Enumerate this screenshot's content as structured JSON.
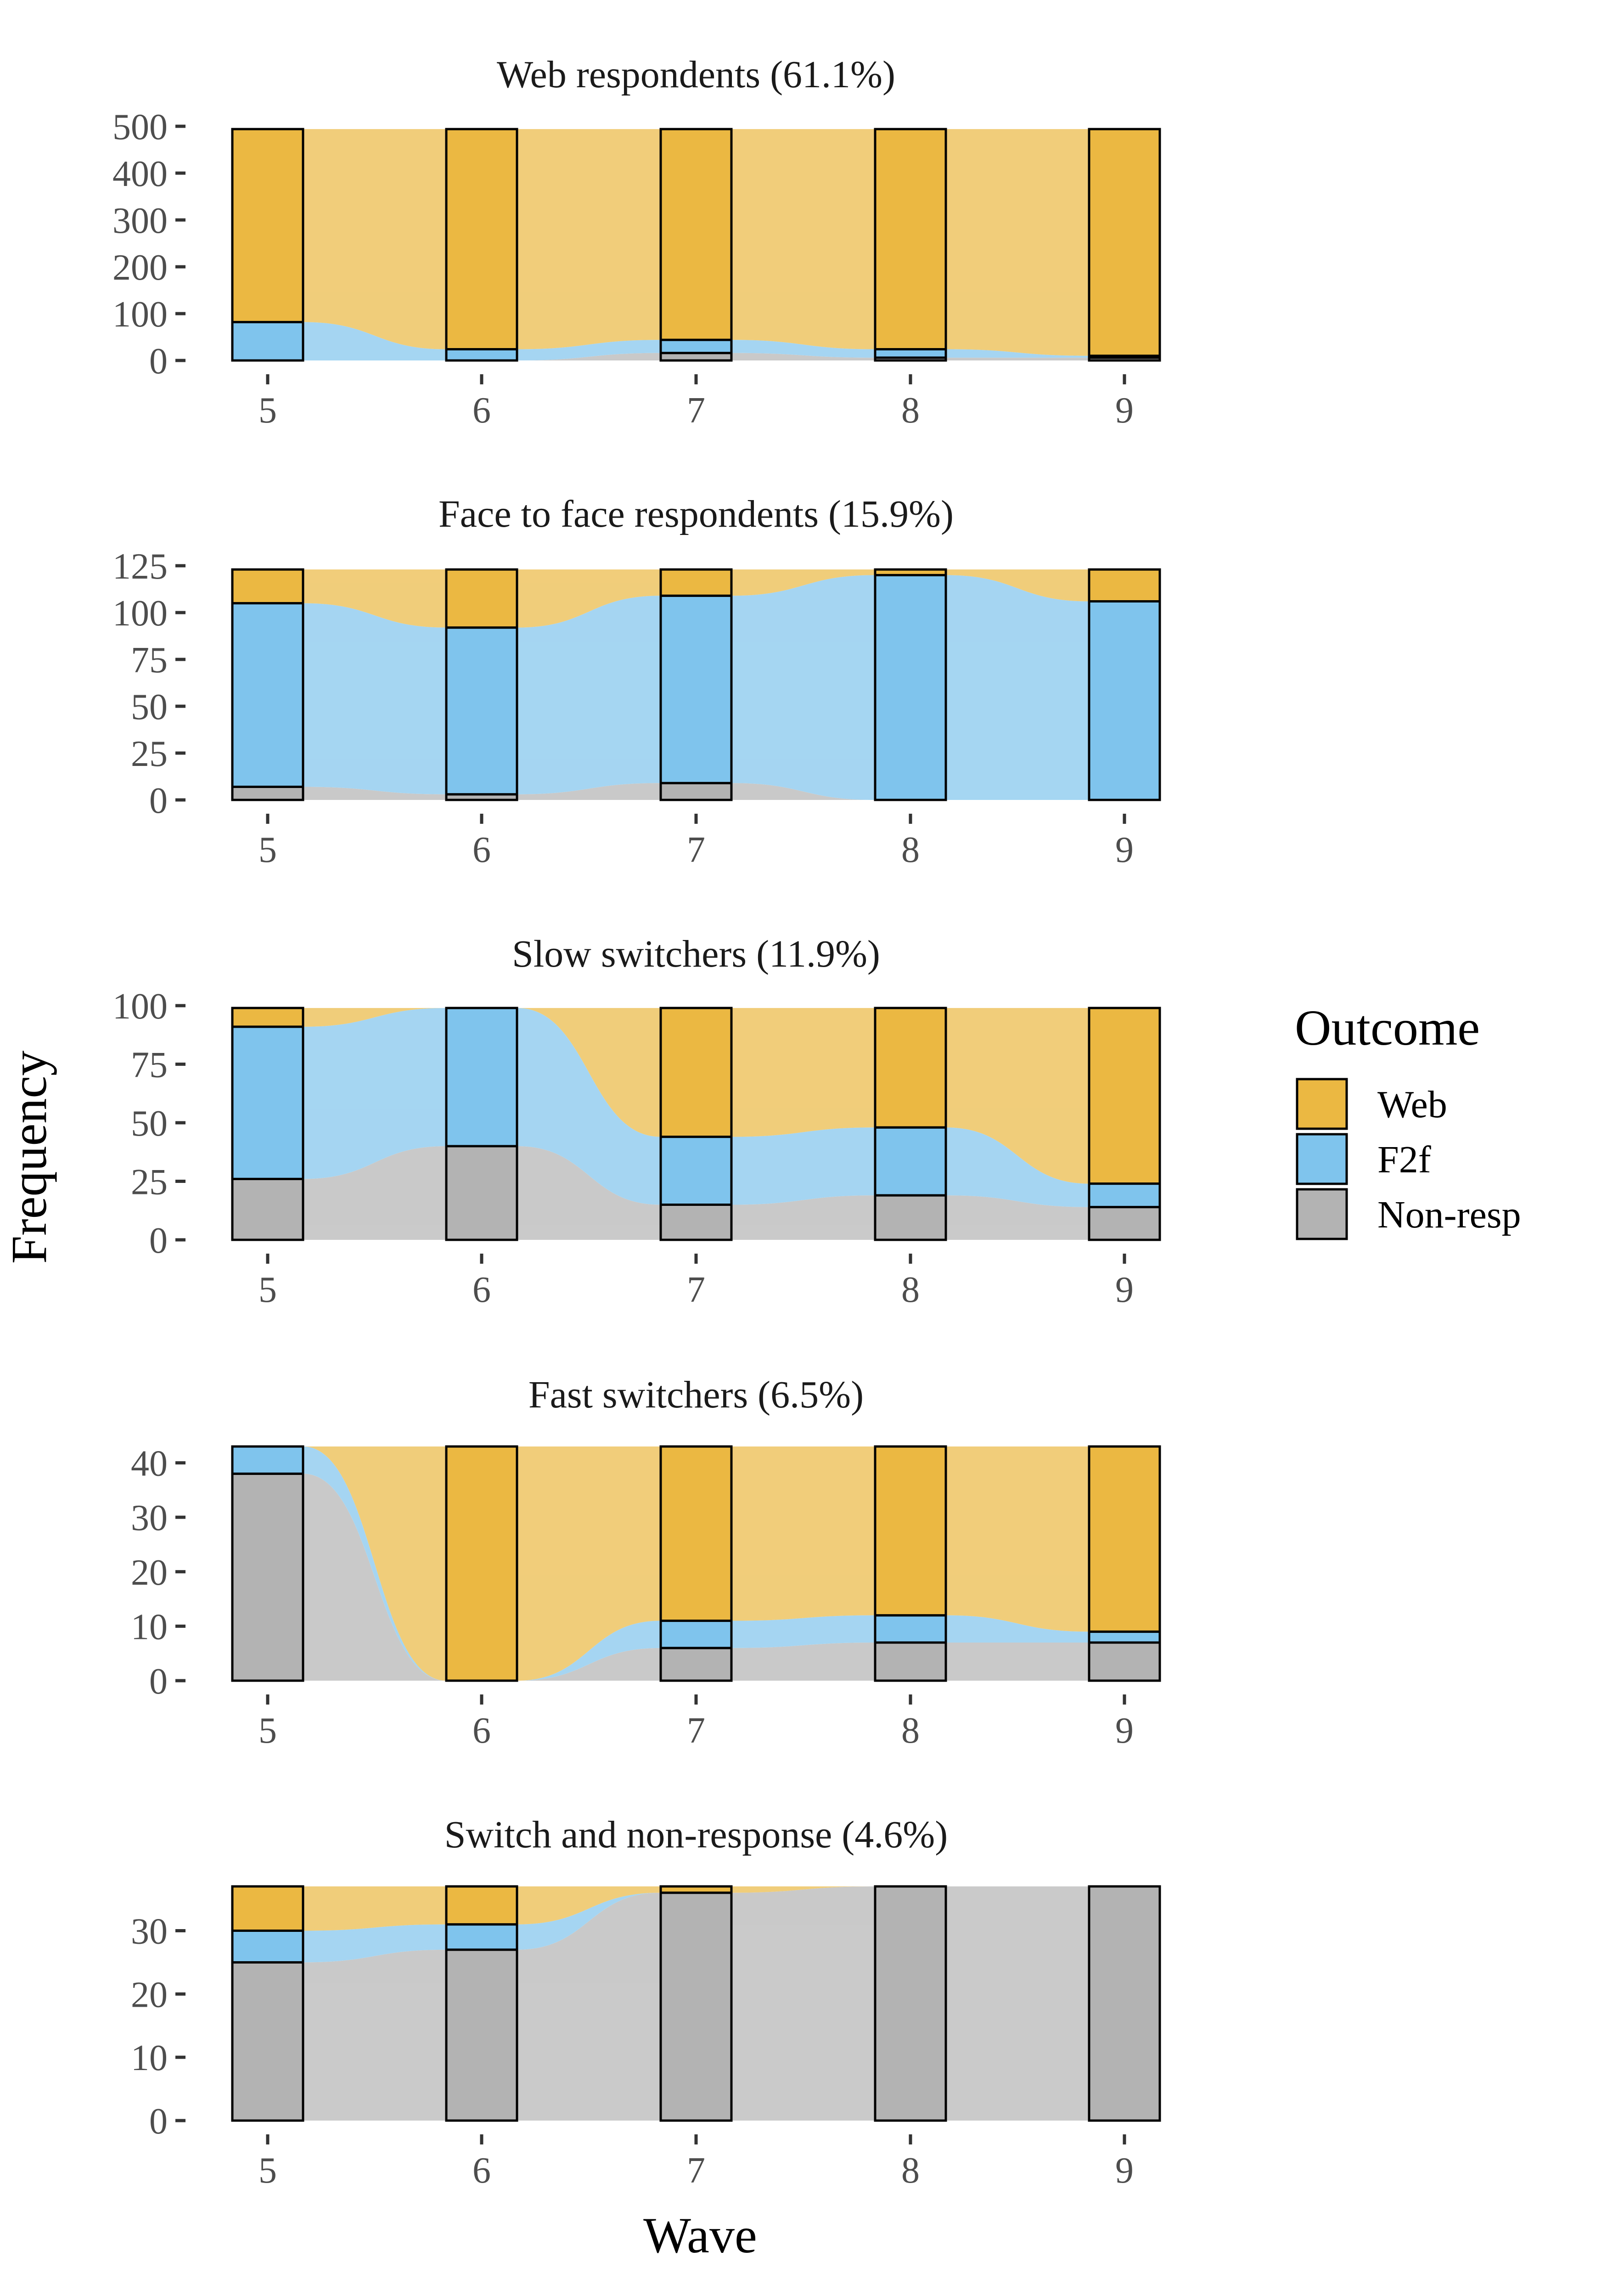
{
  "colors": {
    "Web": "#EBB842",
    "F2f": "#7FC4ED",
    "Non-resp": "#B3B3B3"
  },
  "legend": {
    "title": "Outcome",
    "items": [
      {
        "label": "Web",
        "color": "#EBB842"
      },
      {
        "label": "F2f",
        "color": "#7FC4ED"
      },
      {
        "label": "Non-resp",
        "color": "#B3B3B3"
      }
    ]
  },
  "chart_data": {
    "type": "alluvial",
    "xlabel": "Wave",
    "ylabel": "Frequency",
    "categories": [
      "5",
      "6",
      "7",
      "8",
      "9"
    ],
    "panels": [
      {
        "title": "Web respondents (61.1%)",
        "ylim": [
          0,
          500
        ],
        "yticks": [
          0,
          100,
          200,
          300,
          400,
          500
        ],
        "stacks": [
          {
            "Non-resp": 0,
            "F2f": 82,
            "Web": 412
          },
          {
            "Non-resp": 0,
            "F2f": 24,
            "Web": 470
          },
          {
            "Non-resp": 16,
            "F2f": 28,
            "Web": 450
          },
          {
            "Non-resp": 6,
            "F2f": 18,
            "Web": 470
          },
          {
            "Non-resp": 6,
            "F2f": 4,
            "Web": 484
          }
        ]
      },
      {
        "title": "Face to face respondents (15.9%)",
        "ylim": [
          0,
          125
        ],
        "yticks": [
          0,
          25,
          50,
          75,
          100,
          125
        ],
        "stacks": [
          {
            "Non-resp": 7,
            "F2f": 98,
            "Web": 18
          },
          {
            "Non-resp": 3,
            "F2f": 89,
            "Web": 31
          },
          {
            "Non-resp": 9,
            "F2f": 100,
            "Web": 14
          },
          {
            "Non-resp": 0,
            "F2f": 120,
            "Web": 3
          },
          {
            "Non-resp": 0,
            "F2f": 106,
            "Web": 17
          }
        ]
      },
      {
        "title": "Slow switchers (11.9%)",
        "ylim": [
          0,
          100
        ],
        "yticks": [
          0,
          25,
          50,
          75,
          100
        ],
        "stacks": [
          {
            "Non-resp": 26,
            "F2f": 65,
            "Web": 8
          },
          {
            "Non-resp": 40,
            "F2f": 59,
            "Web": 0
          },
          {
            "Non-resp": 15,
            "F2f": 29,
            "Web": 55
          },
          {
            "Non-resp": 19,
            "F2f": 29,
            "Web": 51
          },
          {
            "Non-resp": 14,
            "F2f": 10,
            "Web": 75
          }
        ]
      },
      {
        "title": "Fast switchers (6.5%)",
        "ylim": [
          0,
          43
        ],
        "yticks": [
          0,
          10,
          20,
          30,
          40
        ],
        "stacks": [
          {
            "Non-resp": 38,
            "F2f": 5,
            "Web": 0
          },
          {
            "Non-resp": 0,
            "F2f": 0,
            "Web": 43
          },
          {
            "Non-resp": 6,
            "F2f": 5,
            "Web": 32
          },
          {
            "Non-resp": 7,
            "F2f": 5,
            "Web": 31
          },
          {
            "Non-resp": 7,
            "F2f": 2,
            "Web": 34
          }
        ]
      },
      {
        "title": "Switch and non-response (4.6%)",
        "ylim": [
          0,
          37
        ],
        "yticks": [
          0,
          10,
          20,
          30
        ],
        "stacks": [
          {
            "Non-resp": 25,
            "F2f": 5,
            "Web": 7
          },
          {
            "Non-resp": 27,
            "F2f": 4,
            "Web": 6
          },
          {
            "Non-resp": 36,
            "F2f": 0,
            "Web": 1
          },
          {
            "Non-resp": 37,
            "F2f": 0,
            "Web": 0
          },
          {
            "Non-resp": 37,
            "F2f": 0,
            "Web": 0
          }
        ]
      }
    ]
  }
}
